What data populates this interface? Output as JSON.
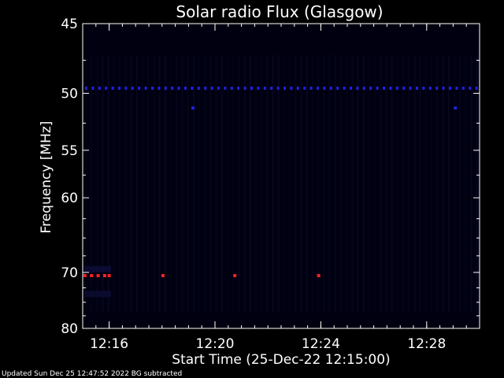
{
  "chart_data": {
    "type": "heatmap",
    "title": "Solar radio Flux (Glasgow)",
    "xlabel": "Start Time (25-Dec-22 12:15:00)",
    "ylabel": "Frequency [MHz]",
    "ylim": [
      45,
      80
    ],
    "y_ticks": [
      "45",
      "50",
      "55",
      "60",
      "70",
      "80"
    ],
    "xlim": [
      "12:15:00",
      "12:30:00"
    ],
    "x_ticks": [
      "12:16",
      "12:20",
      "12:24",
      "12:28"
    ],
    "footer": "Updated Sun Dec 25 12:47:52 2022   BG subtracted",
    "colors": {
      "background": "#000010",
      "band_50mhz": "#2020e0",
      "hot": "#ff2020",
      "dim": "#101040"
    },
    "band_50mhz": {
      "frequency_mhz": 49.6,
      "start_time": "12:15:00",
      "end_time": "12:30:00"
    },
    "hotspots": [
      {
        "time": "12:15:05",
        "frequency_mhz": 70.5,
        "color": "#ff2020"
      },
      {
        "time": "12:15:20",
        "frequency_mhz": 70.5,
        "color": "#ff2020"
      },
      {
        "time": "12:15:35",
        "frequency_mhz": 70.5,
        "color": "#ff2020"
      },
      {
        "time": "12:15:50",
        "frequency_mhz": 70.5,
        "color": "#ff2020"
      },
      {
        "time": "12:16:00",
        "frequency_mhz": 70.5,
        "color": "#ff2020"
      },
      {
        "time": "12:18:02",
        "frequency_mhz": 70.5,
        "color": "#ff2020"
      },
      {
        "time": "12:20:45",
        "frequency_mhz": 70.5,
        "color": "#ff2020"
      },
      {
        "time": "12:23:55",
        "frequency_mhz": 70.5,
        "color": "#ff2020"
      },
      {
        "time": "12:19:10",
        "frequency_mhz": 51.2,
        "color": "#2020e0"
      },
      {
        "time": "12:29:05",
        "frequency_mhz": 51.2,
        "color": "#2020e0"
      }
    ]
  }
}
